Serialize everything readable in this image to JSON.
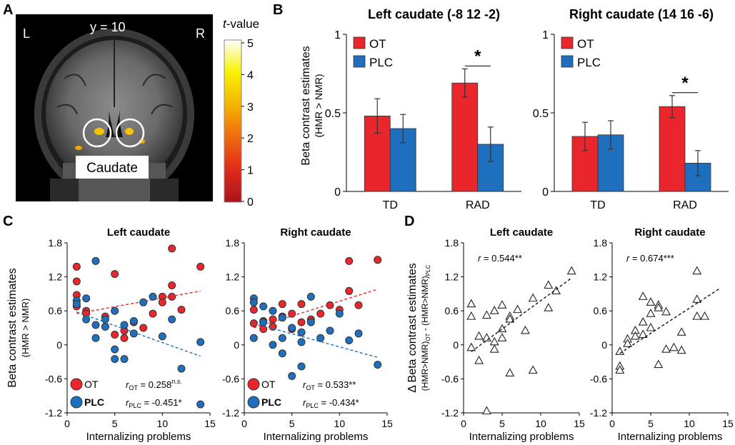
{
  "panels": {
    "A": {
      "letter": "A",
      "left_label": "L",
      "right_label": "R",
      "slice_label": "y = 10",
      "region_label": "Caudate",
      "colorbar_title_italic": "t",
      "colorbar_title_rest": "-value",
      "colorbar_ticks": [
        "5",
        "4",
        "3",
        "2",
        "1",
        "0"
      ],
      "colorbar_colors": [
        "#ffffff",
        "#f7f200",
        "#f5b300",
        "#ee6a10",
        "#e22a1a",
        "#a8141c"
      ]
    },
    "B": {
      "letter": "B"
    },
    "C": {
      "letter": "C"
    },
    "D": {
      "letter": "D"
    }
  },
  "colors": {
    "ot": "#e8262b",
    "plc": "#1f6fbf",
    "ot_line": "#e8262b",
    "plc_line": "#1f6fbf"
  },
  "chart_data": [
    {
      "id": "B-left",
      "type": "bar",
      "title": "Left caudate (-8 12 -2)",
      "ylabel_line1": "Beta contrast estimates",
      "ylabel_line2": "(HMR > NMR)",
      "categories": [
        "TD",
        "RAD"
      ],
      "ylim": [
        0,
        1
      ],
      "yticks": [
        0,
        0.5,
        1
      ],
      "ytick_labels": [
        "0",
        "0.5",
        "1"
      ],
      "series": [
        {
          "name": "OT",
          "values": [
            0.48,
            0.69
          ],
          "errors": [
            0.11,
            0.09
          ]
        },
        {
          "name": "PLC",
          "values": [
            0.4,
            0.3
          ],
          "errors": [
            0.09,
            0.11
          ]
        }
      ],
      "significance": {
        "category": "RAD",
        "label": "*"
      }
    },
    {
      "id": "B-right",
      "type": "bar",
      "title": "Right caudate (14 16 -6)",
      "categories": [
        "TD",
        "RAD"
      ],
      "ylim": [
        0,
        1
      ],
      "yticks": [
        0,
        0.5,
        1
      ],
      "ytick_labels": [
        "0",
        "0.5",
        "1"
      ],
      "series": [
        {
          "name": "OT",
          "values": [
            0.35,
            0.54
          ],
          "errors": [
            0.09,
            0.07
          ]
        },
        {
          "name": "PLC",
          "values": [
            0.36,
            0.18
          ],
          "errors": [
            0.09,
            0.08
          ]
        }
      ],
      "significance": {
        "category": "RAD",
        "label": "*"
      }
    },
    {
      "id": "C-left",
      "type": "scatter",
      "title": "Left caudate",
      "xlabel": "Internalizing problems",
      "ylabel_line1": "Beta contrast estimates",
      "ylabel_line2": "(HMR > NMR)",
      "xlim": [
        0,
        15
      ],
      "ylim": [
        -1.2,
        1.8
      ],
      "xticks": [
        0,
        5,
        10,
        15
      ],
      "xtick_labels": [
        "0",
        "5",
        "10",
        "15"
      ],
      "yticks": [
        -1.2,
        -0.6,
        0,
        0.6,
        1.2,
        1.8
      ],
      "ytick_labels": [
        "-1.2",
        "-0.6",
        "0",
        "0.6",
        "1.2",
        "1.8"
      ],
      "series": [
        {
          "name": "OT",
          "x": [
            1,
            1,
            1,
            1,
            2,
            2,
            4,
            4,
            5,
            5,
            6,
            6,
            7,
            8,
            9,
            10,
            10,
            11,
            11,
            11,
            12,
            14
          ],
          "y": [
            1.38,
            1.12,
            0.88,
            0.68,
            0.6,
            0.55,
            0.5,
            0.32,
            1.25,
            0.18,
            0.25,
            0.12,
            0.4,
            0.3,
            0.55,
            0.85,
            0.75,
            1.05,
            0.85,
            1.7,
            0.62,
            1.38
          ],
          "trend": [
            0.55,
            0.95
          ]
        },
        {
          "name": "PLC",
          "x": [
            1,
            1,
            2,
            2,
            3,
            3,
            3,
            4,
            4,
            5,
            5,
            5,
            6,
            6,
            7,
            7,
            8,
            9,
            10,
            11,
            12,
            14,
            14
          ],
          "y": [
            0.78,
            0.72,
            0.82,
            0.45,
            1.48,
            0.35,
            0.12,
            0.45,
            0.32,
            0.6,
            -0.08,
            -0.25,
            0.35,
            -0.25,
            0.2,
            0.42,
            0.75,
            0.85,
            0.15,
            0.45,
            -0.42,
            0.05,
            -1.05
          ],
          "trend": [
            0.58,
            -0.2
          ]
        }
      ],
      "legend": {
        "ot_label": "OT",
        "plc_label": "PLC",
        "r_ot_value": " = 0.258",
        "r_ot_sup": "n.s.",
        "r_plc_value": " = -0.451*",
        "r_symbol": "r",
        "sub_ot": "OT",
        "sub_plc": "PLC"
      }
    },
    {
      "id": "C-right",
      "type": "scatter",
      "title": "Right caudate",
      "xlabel": "Internalizing problems",
      "xlim": [
        0,
        15
      ],
      "ylim": [
        -1.2,
        1.8
      ],
      "xticks": [
        0,
        5,
        10,
        15
      ],
      "xtick_labels": [
        "0",
        "5",
        "10",
        "15"
      ],
      "yticks": [
        -1.2,
        -0.6,
        0,
        0.6,
        1.2,
        1.8
      ],
      "ytick_labels": [
        "-1.2",
        "-0.6",
        "0",
        "0.6",
        "1.2",
        "1.8"
      ],
      "series": [
        {
          "name": "OT",
          "x": [
            1,
            1,
            2,
            2,
            3,
            3,
            4,
            4,
            5,
            5,
            6,
            6,
            6,
            7,
            8,
            9,
            10,
            11,
            11,
            12,
            14
          ],
          "y": [
            0.62,
            0.38,
            0.42,
            0.28,
            0.45,
            0.32,
            0.72,
            0.5,
            0.55,
            0.28,
            0.72,
            0.4,
            0.22,
            0.45,
            0.55,
            0.7,
            0.62,
            1.48,
            0.95,
            0.7,
            1.5
          ],
          "trend": [
            0.3,
            0.98
          ]
        },
        {
          "name": "PLC",
          "x": [
            1,
            1,
            1,
            2,
            2,
            3,
            3,
            4,
            4,
            4,
            5,
            5,
            6,
            6,
            6,
            7,
            7,
            8,
            9,
            10,
            11,
            12,
            14
          ],
          "y": [
            0.82,
            0.75,
            0.12,
            0.68,
            0.4,
            0.6,
            0.0,
            0.48,
            0.12,
            -0.15,
            0.3,
            -0.55,
            0.22,
            0.05,
            -0.38,
            0.85,
            0.4,
            0.12,
            0.25,
            0.55,
            0.08,
            0.2,
            -0.35
          ],
          "trend": [
            0.38,
            -0.22
          ]
        }
      ],
      "legend": {
        "ot_label": "OT",
        "plc_label": "PLC",
        "r_ot_value": " = 0.533**",
        "r_plc_value": " = -0.434*",
        "r_symbol": "r",
        "sub_ot": "OT",
        "sub_plc": "PLC"
      }
    },
    {
      "id": "D-left",
      "type": "scatter",
      "title": "Left caudate",
      "xlabel": "Internalizing problems",
      "ylabel_line1": "Δ Beta contrast estimates",
      "ylabel_line2a": "(HMR>NMR)",
      "ylabel_sub_ot": "OT",
      "ylabel_mid": " - (HMR>NMR)",
      "ylabel_sub_plc": "PLC",
      "xlim": [
        0,
        15
      ],
      "ylim": [
        -1.2,
        1.8
      ],
      "xticks": [
        0,
        5,
        10,
        15
      ],
      "xtick_labels": [
        "0",
        "5",
        "10",
        "15"
      ],
      "yticks": [
        -1.2,
        -0.6,
        0,
        0.6,
        1.2,
        1.8
      ],
      "ytick_labels": [
        "-1.2",
        "-0.6",
        "0",
        "0.6",
        "1.2",
        "1.8"
      ],
      "series": [
        {
          "name": "delta",
          "x": [
            1,
            1,
            1,
            2,
            2,
            3,
            3,
            3,
            4,
            4,
            4,
            5,
            5,
            5,
            6,
            6,
            6,
            7,
            8,
            9,
            9,
            11,
            11,
            12,
            14
          ],
          "y": [
            0.72,
            0.5,
            -0.05,
            0.15,
            -0.28,
            0.52,
            0.12,
            -1.17,
            0.6,
            0.05,
            -0.08,
            0.7,
            0.28,
            0.12,
            0.5,
            0.45,
            -0.5,
            0.62,
            0.25,
            0.82,
            -0.45,
            1.05,
            0.65,
            0.95,
            1.3
          ],
          "trend": [
            -0.12,
            1.18
          ]
        }
      ],
      "r_symbol": "r",
      "r_value": " = 0.544**"
    },
    {
      "id": "D-right",
      "type": "scatter",
      "title": "Right caudate",
      "xlabel": "Internalizing problems",
      "xlim": [
        0,
        15
      ],
      "ylim": [
        -1.2,
        1.8
      ],
      "xticks": [
        0,
        5,
        10,
        15
      ],
      "xtick_labels": [
        "0",
        "5",
        "10",
        "15"
      ],
      "yticks": [
        -1.2,
        -0.6,
        0,
        0.6,
        1.2,
        1.8
      ],
      "ytick_labels": [
        "-1.2",
        "-0.6",
        "0",
        "0.6",
        "1.2",
        "1.8"
      ],
      "series": [
        {
          "name": "delta",
          "x": [
            1,
            1,
            1,
            2,
            2,
            3,
            3,
            4,
            4,
            4,
            5,
            5,
            5,
            6,
            6,
            6,
            7,
            7,
            8,
            9,
            9,
            11,
            11,
            11,
            12
          ],
          "y": [
            -0.38,
            -0.45,
            -0.12,
            0.1,
            0.02,
            0.25,
            0.15,
            0.85,
            0.4,
            0.18,
            0.75,
            0.55,
            0.3,
            0.7,
            0.65,
            -0.35,
            0.58,
            -0.08,
            -0.05,
            0.22,
            -0.1,
            1.3,
            0.8,
            0.5,
            0.5
          ],
          "trend": [
            -0.15,
            1.0
          ]
        }
      ],
      "r_symbol": "r",
      "r_value": " = 0.674***"
    }
  ]
}
